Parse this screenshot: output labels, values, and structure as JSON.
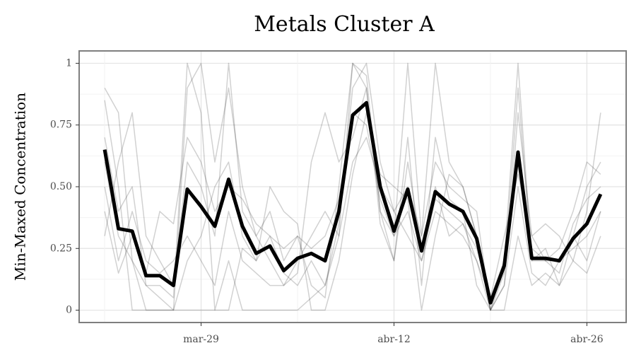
{
  "chart_data": {
    "type": "line",
    "title": "Metals Cluster A",
    "y_label": "Min-Maxed Concentration",
    "categories": [
      null,
      null,
      null,
      null,
      null,
      null,
      null,
      "mar-29",
      null,
      null,
      null,
      null,
      null,
      null,
      null,
      null,
      null,
      null,
      null,
      null,
      null,
      "abr-12",
      null,
      null,
      null,
      null,
      null,
      null,
      null,
      null,
      null,
      null,
      null,
      null,
      null,
      "abr-26",
      null
    ],
    "ylim": [
      -0.05,
      1.05
    ],
    "yticks": [
      0,
      0.25,
      {
        "value": 0.5,
        "label": "0.50"
      },
      0.75,
      1
    ],
    "grid": true,
    "series": [
      {
        "color": "#000000",
        "opacity": 0.18,
        "width": 1.5,
        "values": [
          0.85,
          0.5,
          0,
          0,
          0,
          0,
          0.9,
          1,
          0.6,
          0.9,
          0.5,
          0.3,
          0.4,
          0.2,
          0.3,
          0.1,
          0.05,
          0.5,
          1,
          0.95,
          0.4,
          0.3,
          1,
          0.3,
          1,
          0.6,
          0.5,
          0.3,
          0,
          0.2,
          1,
          0.2,
          0.25,
          0.1,
          0.3,
          0.5,
          0.6
        ]
      },
      {
        "color": "#000000",
        "opacity": 0.18,
        "width": 1.5,
        "values": [
          0.5,
          0.2,
          0.4,
          0.2,
          0.15,
          0.2,
          0.3,
          0.2,
          0.1,
          0.4,
          0.2,
          0.15,
          0.1,
          0.1,
          0.2,
          0.3,
          0.4,
          0.3,
          0.6,
          0.7,
          0.5,
          0.4,
          0.3,
          0.2,
          0.4,
          0.35,
          0.3,
          0.2,
          0,
          0.1,
          0.5,
          0.15,
          0.1,
          0.2,
          0.25,
          0.3,
          0.4
        ]
      },
      {
        "color": "#000000",
        "opacity": 0.18,
        "width": 1.5,
        "values": [
          0.7,
          0.4,
          0.5,
          0.1,
          0.05,
          0,
          0,
          0,
          0,
          0,
          0.25,
          0.2,
          0.3,
          0.15,
          0.1,
          0.2,
          0.1,
          0.35,
          0.9,
          1,
          0.6,
          0.4,
          0.5,
          0.3,
          0.6,
          0.5,
          0.45,
          0.4,
          0,
          0.1,
          0.8,
          0.3,
          0.2,
          0.25,
          0.4,
          0.6,
          0.55
        ]
      },
      {
        "color": "#000000",
        "opacity": 0.18,
        "width": 1.5,
        "values": [
          0.3,
          0.6,
          0.8,
          0.3,
          0.2,
          0.1,
          0.6,
          0.5,
          0.3,
          1,
          0.4,
          0.3,
          0.2,
          0.1,
          0.15,
          0.6,
          0.8,
          0.6,
          0.7,
          0.9,
          0.35,
          0.2,
          0.6,
          0.25,
          0.5,
          0.3,
          0.35,
          0.2,
          0.05,
          0.3,
          0.55,
          0.3,
          0.35,
          0.3,
          0.2,
          0.15,
          0.3
        ]
      },
      {
        "color": "#000000",
        "opacity": 0.18,
        "width": 1.5,
        "values": [
          0.9,
          0.8,
          0.2,
          0,
          0,
          0,
          0.2,
          0.3,
          0.5,
          0.6,
          0.3,
          0.2,
          0.5,
          0.4,
          0.35,
          0,
          0,
          0.2,
          0.55,
          0.8,
          0.55,
          0.5,
          0.45,
          0,
          0.3,
          0.55,
          0.5,
          0.3,
          0,
          0,
          0.3,
          0.1,
          0.15,
          0.1,
          0.2,
          0.4,
          0.8
        ]
      },
      {
        "color": "#000000",
        "opacity": 0.18,
        "width": 1.5,
        "values": [
          0.4,
          0.15,
          0.3,
          0.15,
          0.4,
          0.35,
          0.7,
          0.6,
          0.4,
          0.5,
          0.45,
          0.35,
          0.3,
          0.25,
          0.3,
          0.25,
          0.3,
          0.45,
          0.8,
          0.75,
          0.45,
          0.3,
          0.4,
          0.2,
          0.45,
          0.4,
          0.35,
          0.25,
          0.05,
          0.2,
          0.6,
          0.25,
          0.2,
          0.15,
          0.35,
          0.45,
          0.5
        ]
      },
      {
        "color": "#000000",
        "opacity": 0.18,
        "width": 1.5,
        "values": [
          0.6,
          0.3,
          0.2,
          0.1,
          0.1,
          0.05,
          1,
          0.8,
          0,
          0.2,
          0,
          0,
          0,
          0,
          0,
          0.05,
          0.1,
          0.3,
          1,
          0.9,
          0.4,
          0.2,
          0.7,
          0.1,
          0.7,
          0.45,
          0.4,
          0.1,
          0,
          0.15,
          0.9,
          0.2,
          0.2,
          0.2,
          0.3,
          0.2,
          0.4
        ]
      },
      {
        "color": "#000000",
        "opacity": 1,
        "width": 5,
        "values": [
          0.65,
          0.33,
          0.32,
          0.14,
          0.14,
          0.1,
          0.49,
          0.42,
          0.34,
          0.53,
          0.34,
          0.23,
          0.26,
          0.16,
          0.21,
          0.23,
          0.2,
          0.4,
          0.79,
          0.84,
          0.5,
          0.32,
          0.49,
          0.24,
          0.48,
          0.43,
          0.4,
          0.29,
          0.03,
          0.18,
          0.64,
          0.21,
          0.21,
          0.2,
          0.29,
          0.35,
          0.47
        ]
      }
    ]
  }
}
